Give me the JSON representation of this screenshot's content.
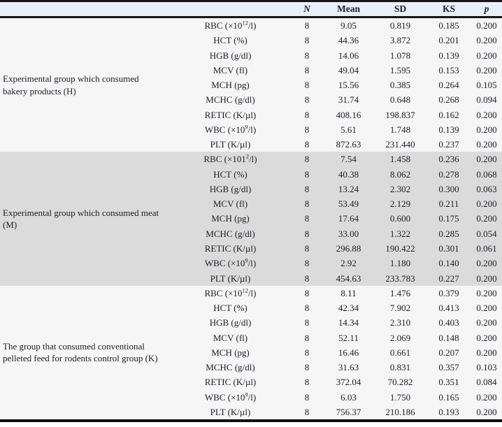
{
  "table": {
    "header": {
      "group": "",
      "parameter": "",
      "n": "N",
      "mean": "Mean",
      "sd": "SD",
      "ks": "KS",
      "p": "p"
    },
    "groups": [
      {
        "label": "Experimental group which consumed bakery products (H)",
        "rows": [
          {
            "param": "RBC (×10^12^/l)",
            "n": "8",
            "mean": "9.05",
            "sd": "0.819",
            "ks": "0.185",
            "p": "0.200"
          },
          {
            "param": "HCT (%)",
            "n": "8",
            "mean": "44.36",
            "sd": "3.872",
            "ks": "0.201",
            "p": "0.200"
          },
          {
            "param": "HGB (g/dl)",
            "n": "8",
            "mean": "14.06",
            "sd": "1.078",
            "ks": "0.139",
            "p": "0.200"
          },
          {
            "param": "MCV (fl)",
            "n": "8",
            "mean": "49.04",
            "sd": "1.595",
            "ks": "0.153",
            "p": "0.200"
          },
          {
            "param": "MCH (pg)",
            "n": "8",
            "mean": "15.56",
            "sd": "0.385",
            "ks": "0.264",
            "p": "0.105"
          },
          {
            "param": "MCHC (g/dl)",
            "n": "8",
            "mean": "31.74",
            "sd": "0.648",
            "ks": "0.268",
            "p": "0.094"
          },
          {
            "param": "RETIC (K/µl)",
            "n": "8",
            "mean": "408.16",
            "sd": "198.837",
            "ks": "0.162",
            "p": "0.200"
          },
          {
            "param": "WBC (×10^9^/l)",
            "n": "8",
            "mean": "5.61",
            "sd": "1.748",
            "ks": "0.139",
            "p": "0.200"
          },
          {
            "param": "PLT (K/µl)",
            "n": "8",
            "mean": "872.63",
            "sd": "231.440",
            "ks": "0.237",
            "p": "0.200"
          }
        ]
      },
      {
        "label": "Experimental group which consumed meat (M)",
        "rows": [
          {
            "param": "RBC (×101^2^/l)",
            "n": "8",
            "mean": "7.54",
            "sd": "1.458",
            "ks": "0.236",
            "p": "0.200"
          },
          {
            "param": "HCT (%)",
            "n": "8",
            "mean": "40.38",
            "sd": "8.062",
            "ks": "0.278",
            "p": "0.068"
          },
          {
            "param": "HGB (g/dl)",
            "n": "8",
            "mean": "13.24",
            "sd": "2.302",
            "ks": "0.300",
            "p": "0.063"
          },
          {
            "param": "MCV (fl)",
            "n": "8",
            "mean": "53.49",
            "sd": "2.129",
            "ks": "0.211",
            "p": "0.200"
          },
          {
            "param": "MCH (pg)",
            "n": "8",
            "mean": "17.64",
            "sd": "0.600",
            "ks": "0.175",
            "p": "0.200"
          },
          {
            "param": "MCHC (g/dl)",
            "n": "8",
            "mean": "33.00",
            "sd": "1.322",
            "ks": "0.285",
            "p": "0.054"
          },
          {
            "param": "RETIC (K/µl)",
            "n": "8",
            "mean": "296.88",
            "sd": "190.422",
            "ks": "0.301",
            "p": "0.061"
          },
          {
            "param": "WBC (×10^9^/l)",
            "n": "8",
            "mean": "2.92",
            "sd": "1.180",
            "ks": "0.140",
            "p": "0.200"
          },
          {
            "param": "PLT (K/µl)",
            "n": "8",
            "mean": "454.63",
            "sd": "233.783",
            "ks": "0.227",
            "p": "0.200"
          }
        ]
      },
      {
        "label": "The group that consumed conventional pelleted feed for rodents control group (K)",
        "rows": [
          {
            "param": "RBC (×10^12^/l)",
            "n": "8",
            "mean": "8.11",
            "sd": "1.476",
            "ks": "0.379",
            "p": "0.200"
          },
          {
            "param": "HCT (%)",
            "n": "8",
            "mean": "42.34",
            "sd": "7.902",
            "ks": "0.413",
            "p": "0.200"
          },
          {
            "param": "HGB (g/dl)",
            "n": "8",
            "mean": "14.34",
            "sd": "2.310",
            "ks": "0.403",
            "p": "0.200"
          },
          {
            "param": "MCV (fl)",
            "n": "8",
            "mean": "52.11",
            "sd": "2.069",
            "ks": "0.148",
            "p": "0.200"
          },
          {
            "param": "MCH (pg)",
            "n": "8",
            "mean": "16.46",
            "sd": "0.661",
            "ks": "0.207",
            "p": "0.200"
          },
          {
            "param": "MCHC (g/dl)",
            "n": "8",
            "mean": "31.63",
            "sd": "0.831",
            "ks": "0.357",
            "p": "0.103"
          },
          {
            "param": "RETIC (K/µl)",
            "n": "8",
            "mean": "372.04",
            "sd": "70.282",
            "ks": "0.351",
            "p": "0.084"
          },
          {
            "param": "WBC (×10^9^/l)",
            "n": "8",
            "mean": "6.03",
            "sd": "1.750",
            "ks": "0.165",
            "p": "0.200"
          },
          {
            "param": "PLT (K/µl)",
            "n": "8",
            "mean": "756.37",
            "sd": "210.186",
            "ks": "0.193",
            "p": "0.200"
          }
        ]
      }
    ],
    "colors": {
      "header_bg": "#eaf0f8",
      "band_white": "#f6f6f6",
      "band_gray": "#dbdbdb",
      "rule": "#161616"
    }
  }
}
